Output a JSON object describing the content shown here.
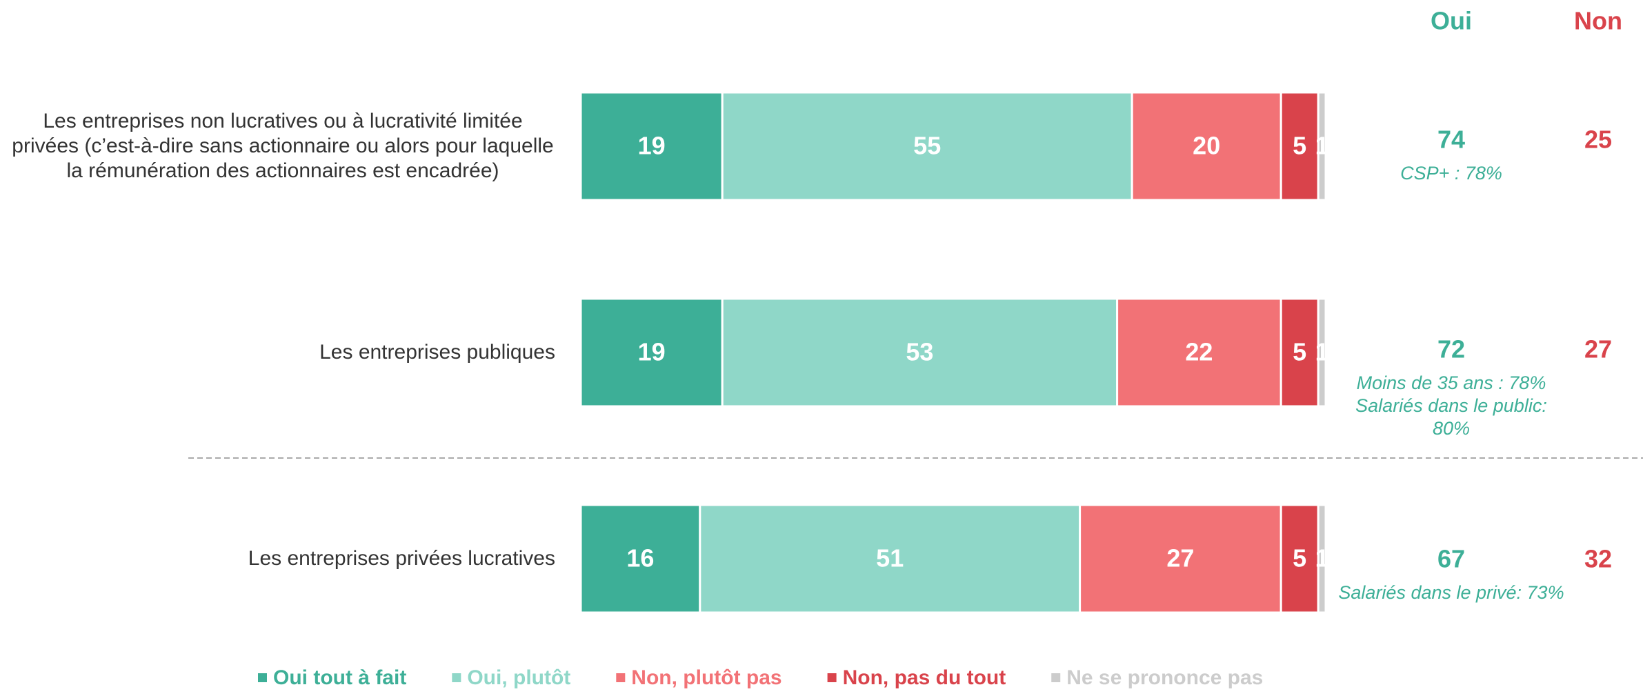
{
  "chart_data": {
    "type": "bar",
    "orientation": "horizontal",
    "stacked": true,
    "categories": [
      "Les entreprises non lucratives ou à lucrativité limitée privées (c’est-à-dire sans actionnaire ou alors pour laquelle la rémunération des actionnaires est encadrée)",
      "Les entreprises publiques",
      "Les entreprises privées lucratives"
    ],
    "series": [
      {
        "name": "Oui tout à fait",
        "color": "#3daf97",
        "values": [
          19,
          19,
          16
        ]
      },
      {
        "name": "Oui, plutôt",
        "color": "#8fd7c8",
        "values": [
          55,
          53,
          51
        ]
      },
      {
        "name": "Non, plutôt pas",
        "color": "#f27276",
        "values": [
          20,
          22,
          27
        ]
      },
      {
        "name": "Non, pas du tout",
        "color": "#d9434b",
        "values": [
          5,
          5,
          5
        ]
      },
      {
        "name": "Ne se prononce pas",
        "color": "#cccccc",
        "values": [
          1,
          1,
          1
        ]
      }
    ],
    "xlim": [
      0,
      100
    ],
    "oui_header": "Oui",
    "non_header": "Non",
    "oui_color": "#3daf97",
    "non_color": "#d9434b",
    "oui_totals": [
      74,
      72,
      67
    ],
    "non_totals": [
      25,
      27,
      32
    ],
    "notes": [
      [
        "CSP+ : 78%"
      ],
      [
        "Moins de 35 ans : 78%",
        "Salariés dans le public: 80%"
      ],
      [
        "Salariés dans le privé: 73%"
      ]
    ]
  }
}
